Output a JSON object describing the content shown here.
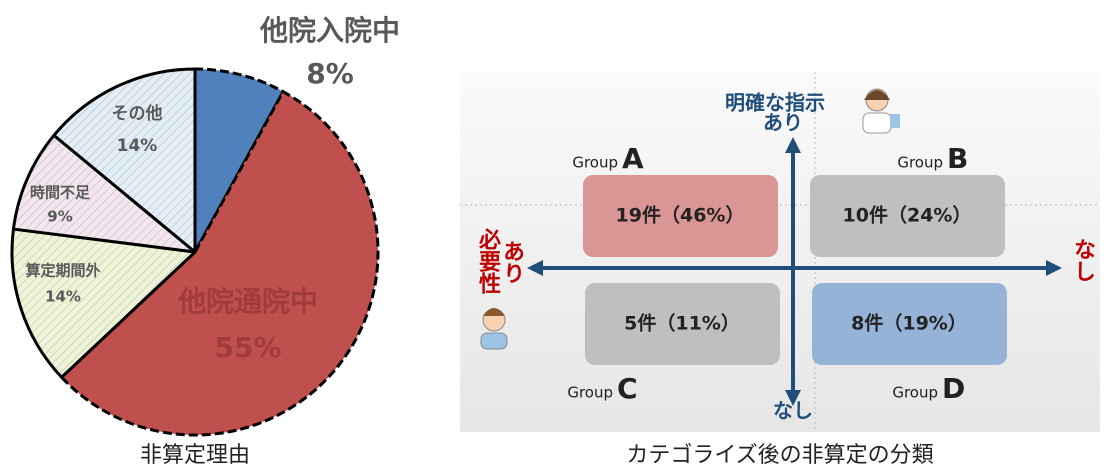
{
  "chart_data": {
    "type": "pie",
    "title": "非算定理由",
    "categories": [
      "他院入院中",
      "他院通院中",
      "算定期間外",
      "時間不足",
      "その他"
    ],
    "values": [
      8,
      55,
      14,
      9,
      14
    ],
    "value_labels": [
      "8%",
      "55%",
      "14%",
      "9%",
      "14%"
    ],
    "colors": [
      "#4f81bd",
      "#c0504d",
      "#eef4d6",
      "#f3e6ef",
      "#e2eff8"
    ]
  },
  "diagram": {
    "caption": "カテゴライズ後の非算定の分類",
    "y_axis": {
      "top": [
        "明確な指示",
        "あり"
      ],
      "bottom": "なし"
    },
    "x_axis": {
      "left": [
        "必要性",
        "あり"
      ],
      "right": "なし"
    },
    "groups": [
      {
        "label": "Group",
        "letter": "A",
        "text": "19件（46%）"
      },
      {
        "label": "Group",
        "letter": "B",
        "text": "10件（24%）"
      },
      {
        "label": "Group",
        "letter": "C",
        "text": "5件（11%）"
      },
      {
        "label": "Group",
        "letter": "D",
        "text": "8件（19%）"
      }
    ]
  }
}
